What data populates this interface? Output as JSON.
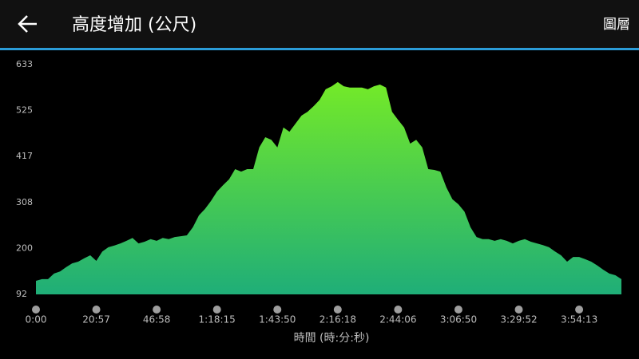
{
  "header": {
    "title": "高度增加 (公尺)",
    "action": "圖層"
  },
  "chart_data": {
    "type": "area",
    "x_label": "時間 (時:分:秒)",
    "x": [
      0,
      1,
      2,
      3,
      4,
      5,
      6,
      7,
      8,
      9,
      10,
      11,
      12,
      13,
      14,
      15,
      16,
      17,
      18,
      19,
      20,
      21,
      22,
      23,
      24,
      25,
      26,
      27,
      28,
      29,
      30,
      31,
      32,
      33,
      34,
      35,
      36,
      37,
      38,
      39,
      40,
      41,
      42,
      43,
      44,
      45,
      46,
      47,
      48,
      49,
      50,
      51,
      52,
      53,
      54,
      55,
      56,
      57,
      58,
      59,
      60,
      61,
      62,
      63,
      64,
      65,
      66,
      67,
      68,
      69,
      70,
      71,
      72,
      73,
      74,
      75,
      76,
      77,
      78,
      79,
      80,
      81,
      82,
      83,
      84,
      85,
      86,
      87,
      88,
      89,
      90,
      91,
      92,
      93,
      94,
      95,
      96,
      97
    ],
    "values": [
      124,
      128,
      128,
      141,
      146,
      156,
      165,
      169,
      177,
      184,
      171,
      193,
      203,
      207,
      212,
      218,
      225,
      212,
      216,
      222,
      218,
      225,
      222,
      227,
      229,
      231,
      250,
      278,
      293,
      312,
      334,
      349,
      363,
      387,
      381,
      387,
      387,
      438,
      462,
      456,
      438,
      485,
      475,
      494,
      513,
      522,
      535,
      550,
      575,
      582,
      592,
      582,
      579,
      579,
      579,
      575,
      582,
      586,
      579,
      522,
      503,
      485,
      447,
      456,
      438,
      387,
      385,
      381,
      344,
      316,
      304,
      287,
      250,
      227,
      222,
      222,
      218,
      222,
      218,
      212,
      218,
      222,
      216,
      212,
      208,
      203,
      193,
      184,
      169,
      180,
      180,
      175,
      169,
      160,
      150,
      141,
      137,
      128
    ],
    "xlim": [
      0,
      97.4
    ],
    "xticks": [
      {
        "value": 0,
        "label": "0:00"
      },
      {
        "value": 10,
        "label": "20:57"
      },
      {
        "value": 20,
        "label": "46:58"
      },
      {
        "value": 30,
        "label": "1:18:15"
      },
      {
        "value": 40,
        "label": "1:43:50"
      },
      {
        "value": 50,
        "label": "2:16:18"
      },
      {
        "value": 60,
        "label": "2:44:06"
      },
      {
        "value": 70,
        "label": "3:06:50"
      },
      {
        "value": 80,
        "label": "3:29:52"
      },
      {
        "value": 90,
        "label": "3:54:13"
      }
    ],
    "ylim": [
      92,
      633
    ],
    "yticks": [
      92,
      200,
      308,
      417,
      525,
      633
    ]
  }
}
